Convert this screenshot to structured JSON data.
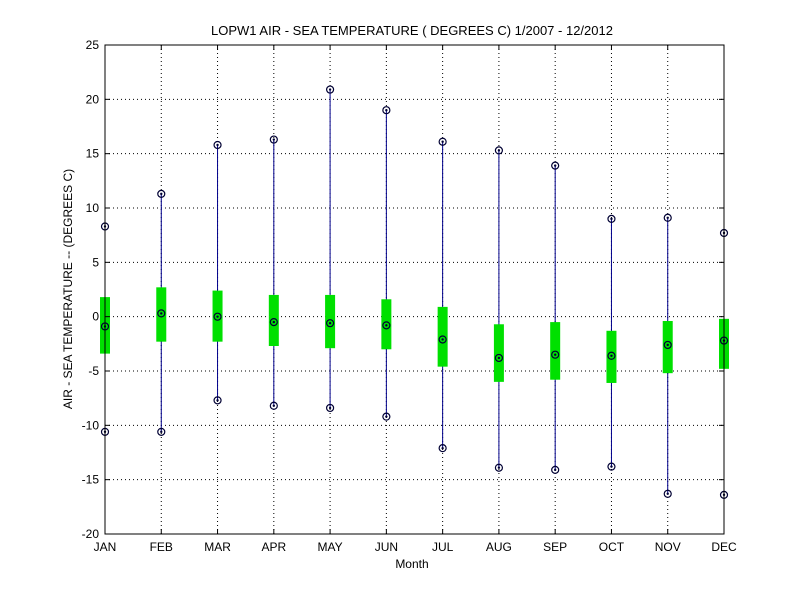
{
  "chart_data": {
    "type": "box",
    "title": "LOPW1  AIR - SEA TEMPERATURE ( DEGREES C) 1/2007 - 12/2012",
    "xlabel": "Month",
    "ylabel": "AIR - SEA TEMPERATURE -- (DEGREES C)",
    "ylim": [
      -20,
      25
    ],
    "yticks": [
      25,
      20,
      15,
      10,
      5,
      0,
      -5,
      -10,
      -15,
      -20
    ],
    "grid": true,
    "categories": [
      "JAN",
      "FEB",
      "MAR",
      "APR",
      "MAY",
      "JUN",
      "JUL",
      "AUG",
      "SEP",
      "OCT",
      "NOV",
      "DEC"
    ],
    "series": [
      {
        "max": [
          8.3,
          11.3,
          15.8,
          16.3,
          20.9,
          19.0,
          16.1,
          15.3,
          13.9,
          9.0,
          9.1,
          7.7
        ],
        "q3": [
          1.8,
          2.7,
          2.4,
          2.0,
          2.0,
          1.6,
          0.9,
          -0.7,
          -0.5,
          -1.3,
          -0.4,
          -0.2
        ],
        "median": [
          -0.9,
          0.3,
          0.0,
          -0.5,
          -0.6,
          -0.8,
          -2.1,
          -3.8,
          -3.5,
          -3.6,
          -2.6,
          -2.2
        ],
        "q1": [
          -3.4,
          -2.3,
          -2.3,
          -2.7,
          -2.9,
          -3.0,
          -4.6,
          -6.0,
          -5.8,
          -6.1,
          -5.2,
          -4.8
        ],
        "min": [
          -10.6,
          -10.6,
          -7.7,
          -8.2,
          -8.4,
          -9.2,
          -12.1,
          -13.9,
          -14.1,
          -13.8,
          -16.3,
          -16.4
        ]
      }
    ],
    "colors": {
      "whisker": "#00008b",
      "box": "#00e000",
      "marker": "#000033",
      "grid": "#000000"
    }
  }
}
